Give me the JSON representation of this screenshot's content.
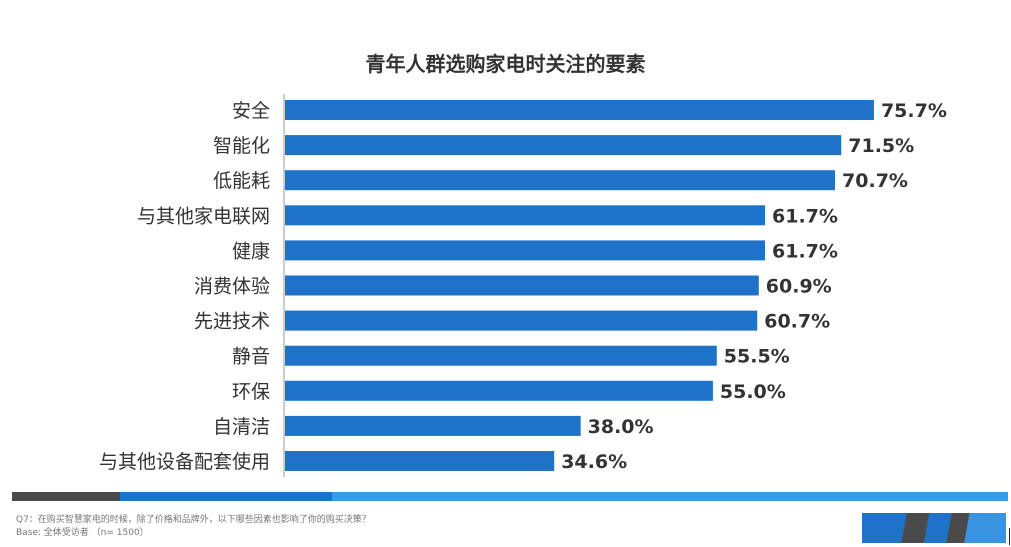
{
  "chart_data": {
    "type": "bar",
    "orientation": "horizontal",
    "title": "青年人群选购家电时关注的要素",
    "categories": [
      "安全",
      "智能化",
      "低能耗",
      "与其他家电联网",
      "健康",
      "消费体验",
      "先进技术",
      "静音",
      "环保",
      "自清洁",
      "与其他设备配套使用"
    ],
    "values": [
      75.7,
      71.5,
      70.7,
      61.7,
      61.7,
      60.9,
      60.7,
      55.5,
      55.0,
      38.0,
      34.6
    ],
    "value_labels": [
      "75.7%",
      "71.5%",
      "70.7%",
      "61.7%",
      "61.7%",
      "60.9%",
      "60.7%",
      "55.5%",
      "55.0%",
      "38.0%",
      "34.6%"
    ],
    "xlim": [
      0,
      100
    ],
    "grid": false,
    "legend": "none",
    "bar_color": "#1e72c8"
  },
  "footer": {
    "question": "Q7：在购买智慧家电的时候，除了价格和品牌外，以下哪些因素也影响了你的购买决策？",
    "base": "Base: 全体受访者 （n= 1500）"
  },
  "colors": {
    "band_dark": "#4a4a4a",
    "band_mid": "#1e72c8",
    "band_light": "#3a9be3"
  }
}
